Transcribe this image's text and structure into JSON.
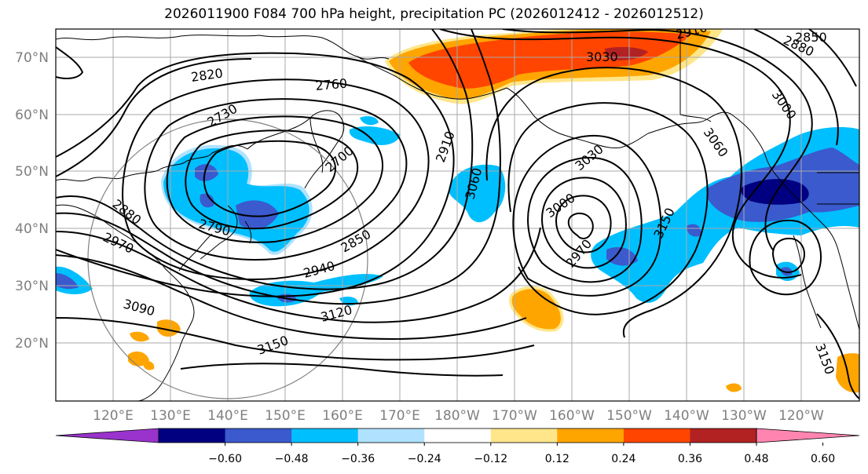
{
  "title": "2026011900 F084 700 hPa height, precipitation PC (2026012412 - 2026012512)",
  "map": {
    "lat_labels": [
      "70°N",
      "60°N",
      "50°N",
      "40°N",
      "30°N",
      "20°N"
    ],
    "lon_labels": [
      "120°E",
      "130°E",
      "140°E",
      "150°E",
      "160°E",
      "170°E",
      "180°W",
      "170°W",
      "160°W",
      "150°W",
      "140°W",
      "130°W",
      "120°W"
    ],
    "height_contour_labels": [
      "2820",
      "2760",
      "2730",
      "2700",
      "2910",
      "3030",
      "3060",
      "2880",
      "2790",
      "2970",
      "2850",
      "2940",
      "3090",
      "3120",
      "3150",
      "3000",
      "2970",
      "3150",
      "3060",
      "3030",
      "3000",
      "2910",
      "2850",
      "2880",
      "3150"
    ],
    "colors": {
      "purple": "#9933cc",
      "navy": "#000080",
      "royal": "#3a5acd",
      "deepsky": "#00bfff",
      "lightblue": "#b0e2ff",
      "white": "#ffffff",
      "lightyellow": "#ffe68a",
      "orange": "#ffa500",
      "orangered": "#ff4500",
      "firebrick": "#b22222",
      "pink": "#ff85b0"
    }
  },
  "colorbar": {
    "ticks": [
      "−0.60",
      "−0.48",
      "−0.36",
      "−0.24",
      "−0.12",
      "0.12",
      "0.24",
      "0.36",
      "0.48",
      "0.60"
    ],
    "colors": [
      "#9933cc",
      "#000080",
      "#3a5acd",
      "#00bfff",
      "#b0e2ff",
      "#ffffff",
      "#ffe68a",
      "#ffa500",
      "#ff4500",
      "#b22222",
      "#ff85b0"
    ]
  }
}
